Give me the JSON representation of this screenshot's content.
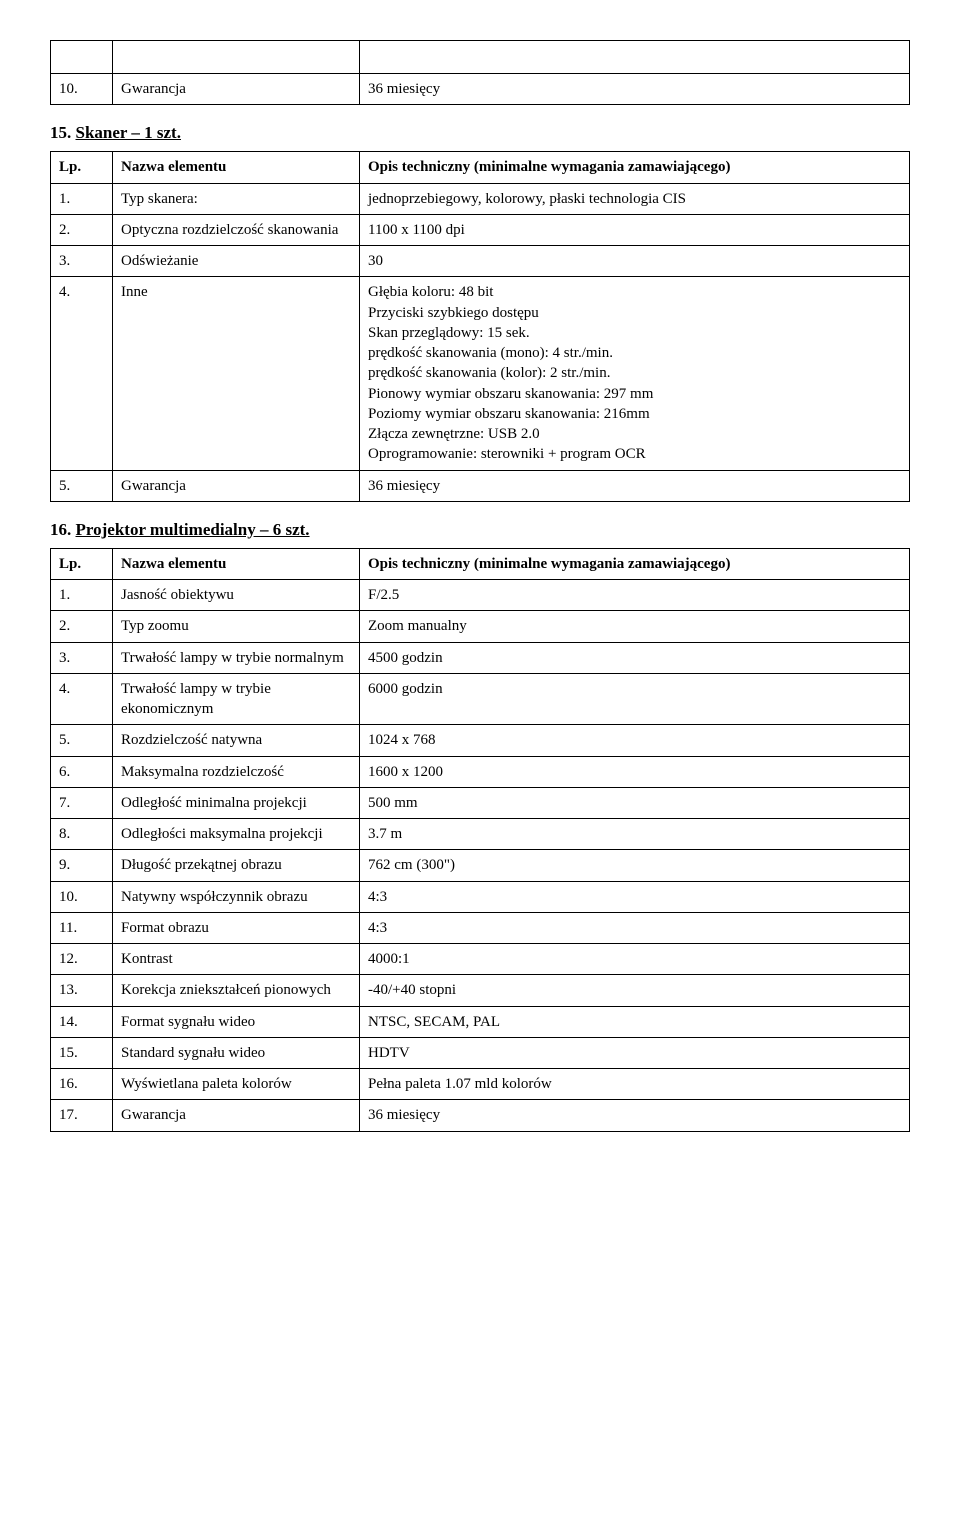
{
  "top_table": {
    "row1": {
      "lp": "10.",
      "name": "Gwarancja",
      "desc": "36 miesięcy"
    }
  },
  "section15": {
    "number": "15.",
    "title": "Skaner – 1 szt.",
    "header": {
      "lp": "Lp.",
      "name": "Nazwa elementu",
      "desc": "Opis techniczny (minimalne wymagania zamawiającego)"
    },
    "rows": {
      "r1": {
        "lp": "1.",
        "name": "Typ skanera:",
        "desc": "jednoprzebiegowy, kolorowy, płaski technologia CIS"
      },
      "r2": {
        "lp": "2.",
        "name": "Optyczna rozdzielczość skanowania",
        "desc": "1100 x 1100 dpi"
      },
      "r3": {
        "lp": "3.",
        "name": "Odświeżanie",
        "desc": "30"
      },
      "r4": {
        "lp": "4.",
        "name": "Inne",
        "desc": "Głębia koloru: 48 bit\nPrzyciski szybkiego dostępu\nSkan przeglądowy: 15 sek.\nprędkość skanowania (mono): 4 str./min.\nprędkość skanowania (kolor): 2 str./min.\nPionowy wymiar obszaru skanowania: 297 mm\nPoziomy wymiar obszaru skanowania: 216mm\nZłącza zewnętrzne: USB 2.0\nOprogramowanie: sterowniki + program OCR"
      },
      "r5": {
        "lp": "5.",
        "name": "Gwarancja",
        "desc": " 36 miesięcy"
      }
    }
  },
  "section16": {
    "number": "16.",
    "title": "Projektor multimedialny – 6 szt.",
    "header": {
      "lp": "Lp.",
      "name": "Nazwa elementu",
      "desc": "Opis techniczny (minimalne wymagania zamawiającego)"
    },
    "rows": {
      "r1": {
        "lp": "1.",
        "name": "Jasność obiektywu",
        "desc": "F/2.5"
      },
      "r2": {
        "lp": "2.",
        "name": "Typ zoomu",
        "desc": "Zoom manualny"
      },
      "r3": {
        "lp": "3.",
        "name": "Trwałość lampy w trybie normalnym",
        "desc": "4500 godzin"
      },
      "r4": {
        "lp": "4.",
        "name": "Trwałość lampy w trybie ekonomicznym",
        "desc": "6000 godzin"
      },
      "r5": {
        "lp": "5.",
        "name": "Rozdzielczość natywna",
        "desc": "1024 x 768"
      },
      "r6": {
        "lp": "6.",
        "name": "Maksymalna rozdzielczość",
        "desc": "1600 x 1200"
      },
      "r7": {
        "lp": "7.",
        "name": "Odległość minimalna projekcji",
        "desc": "500 mm"
      },
      "r8": {
        "lp": "8.",
        "name": "Odległości maksymalna projekcji",
        "desc": "3.7 m"
      },
      "r9": {
        "lp": "9.",
        "name": "Długość przekątnej obrazu",
        "desc": "762 cm (300\")"
      },
      "r10": {
        "lp": "10.",
        "name": "Natywny współczynnik obrazu",
        "desc": "4:3"
      },
      "r11": {
        "lp": "11.",
        "name": "Format obrazu",
        "desc": "4:3"
      },
      "r12": {
        "lp": "12.",
        "name": "Kontrast",
        "desc": "4000:1"
      },
      "r13": {
        "lp": "13.",
        "name": "Korekcja zniekształceń pionowych",
        "desc": "-40/+40 stopni"
      },
      "r14": {
        "lp": "14.",
        "name": "Format sygnału wideo",
        "desc": "NTSC, SECAM, PAL"
      },
      "r15": {
        "lp": "15.",
        "name": "Standard sygnału wideo",
        "desc": "HDTV"
      },
      "r16": {
        "lp": "16.",
        "name": "Wyświetlana paleta kolorów",
        "desc": "Pełna paleta 1.07 mld kolorów"
      },
      "r17": {
        "lp": "17.",
        "name": "Gwarancja",
        "desc": "36 miesięcy"
      }
    }
  }
}
